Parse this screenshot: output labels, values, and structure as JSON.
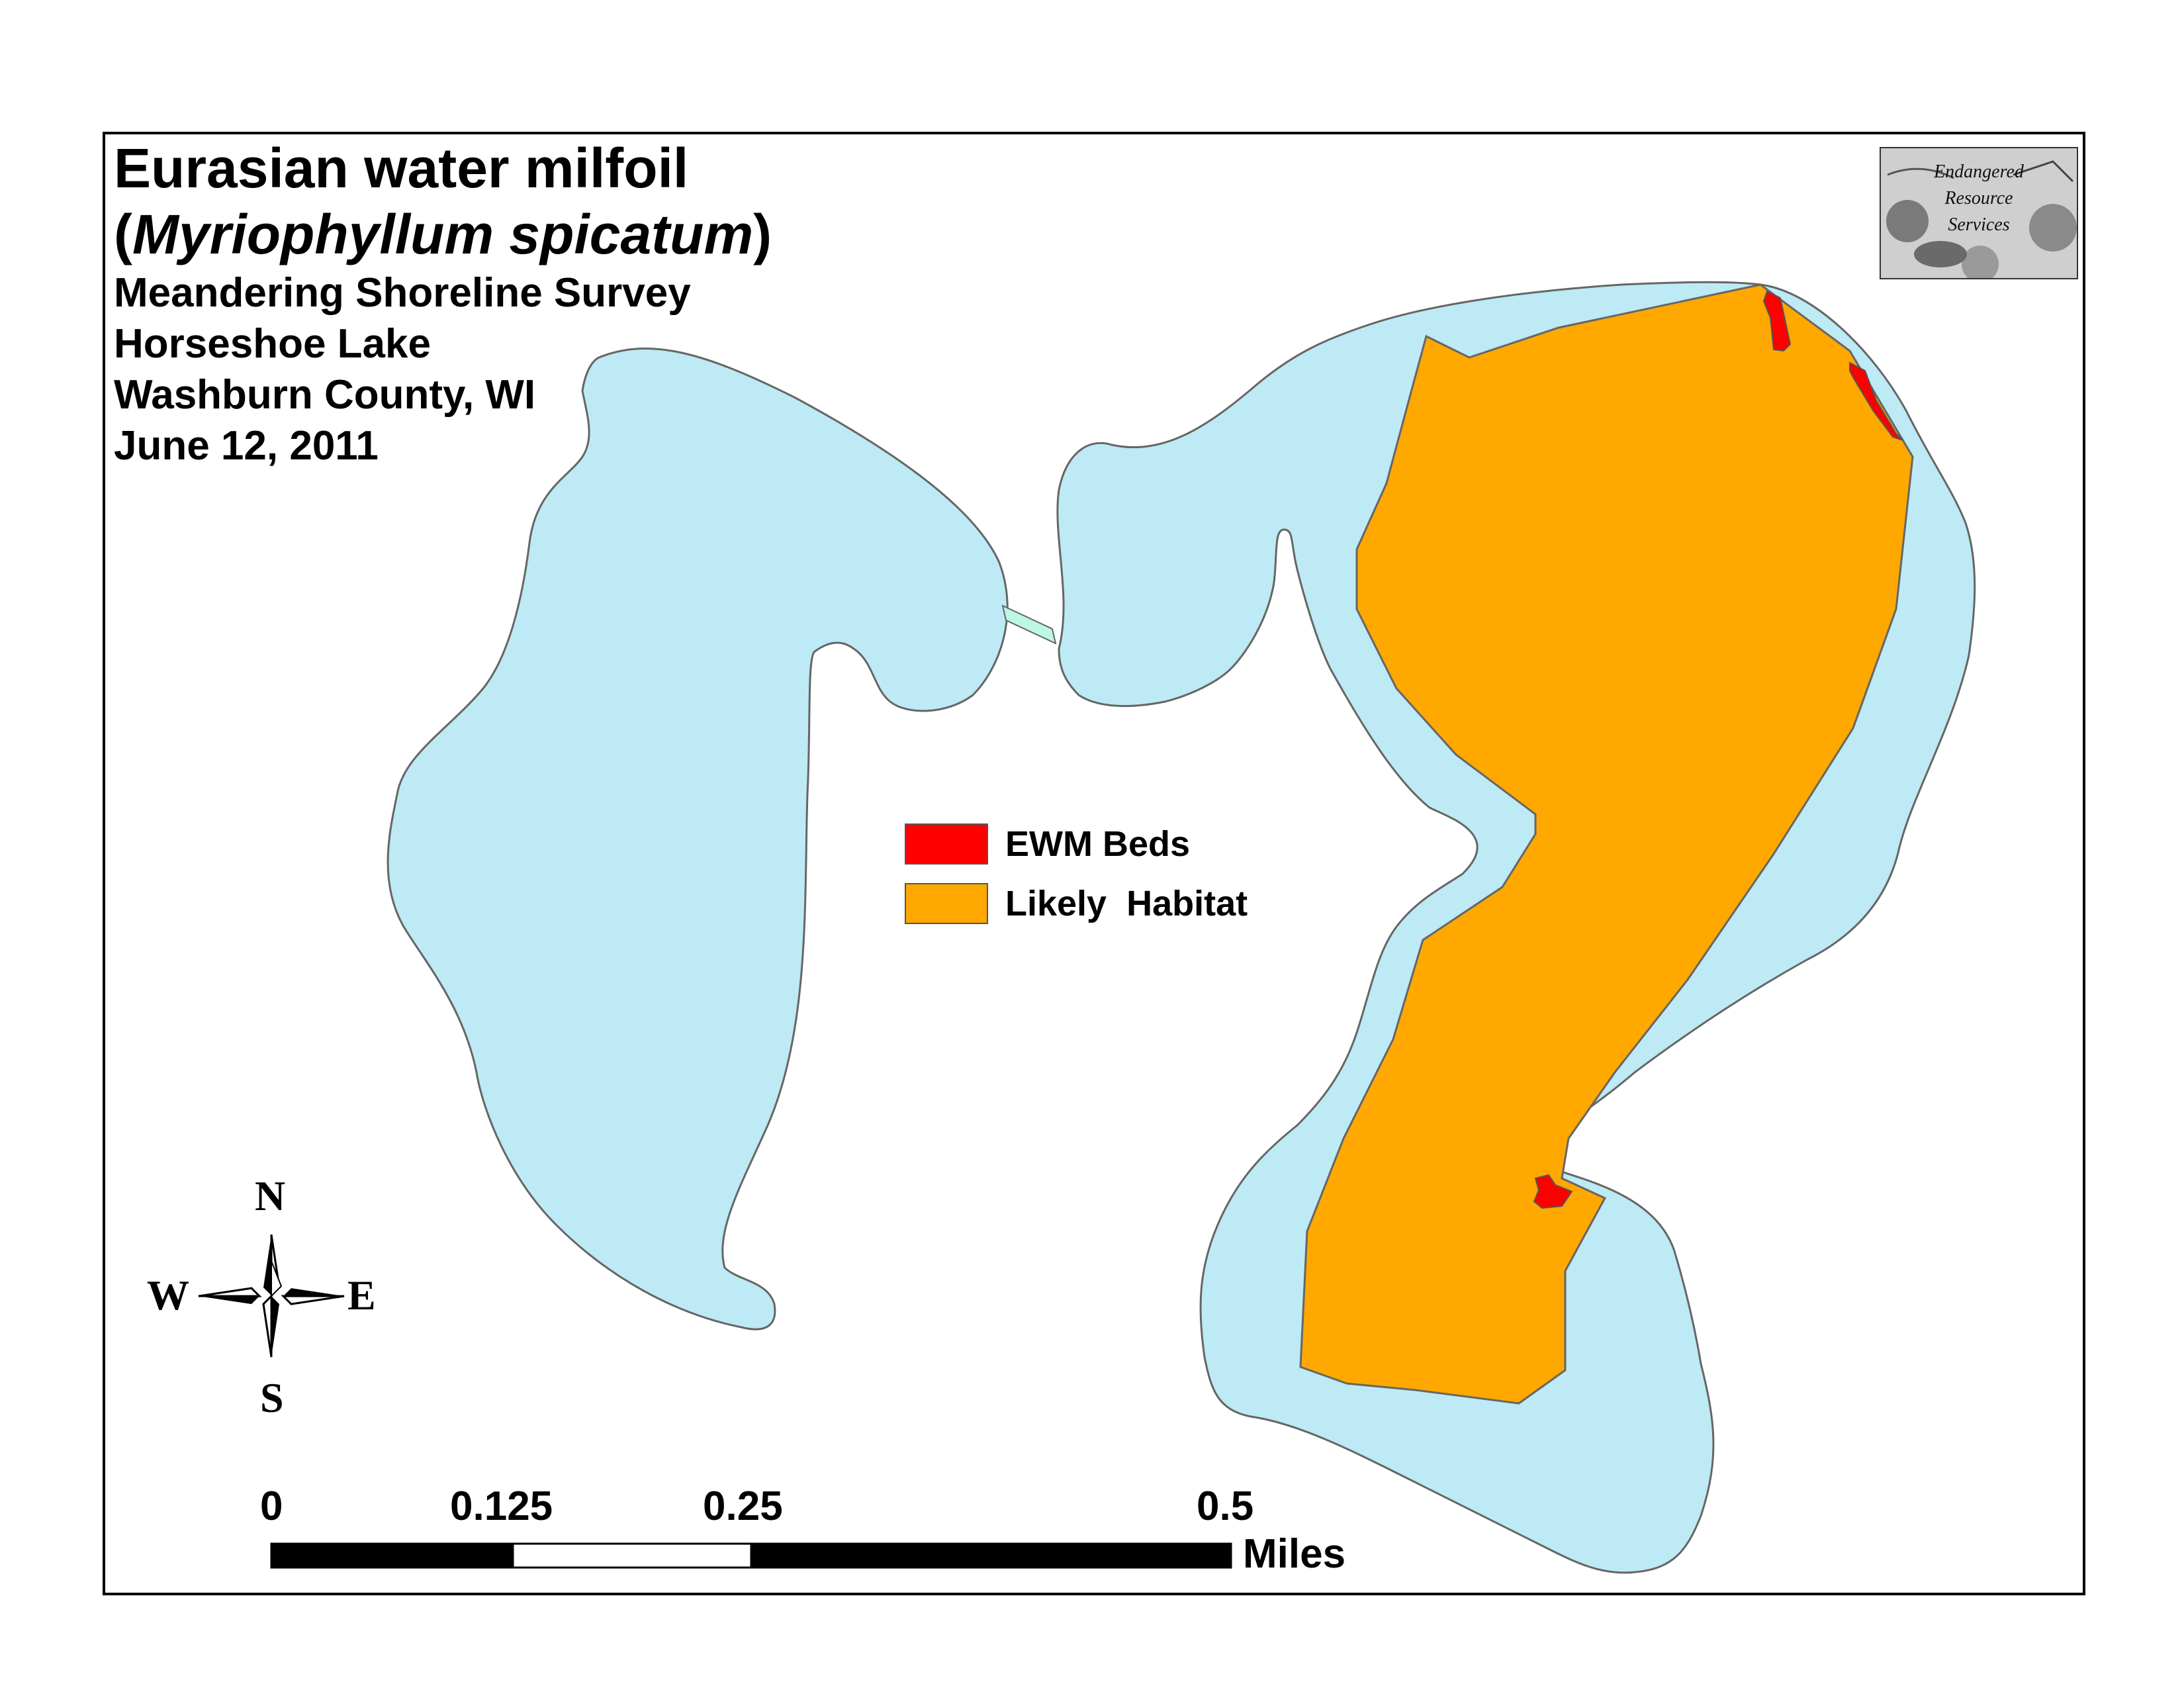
{
  "title": {
    "line1": "Eurasian water milfoil",
    "line2_open": "(",
    "line2_species": "Myriophyllum spicatum",
    "line2_close": ")",
    "survey": "Meandering Shoreline Survey",
    "lake": "Horseshoe Lake",
    "county": "Washburn County, WI",
    "date": "June 12, 2011"
  },
  "legend": {
    "items": [
      {
        "label": "EWM Beds",
        "color": "#ff0000"
      },
      {
        "label": "Likely  Habitat",
        "color": "#ffa800"
      }
    ]
  },
  "logo": {
    "line1": "Endangered",
    "line2": "Resource",
    "line3": "Services"
  },
  "compass": {
    "n": "N",
    "s": "S",
    "e": "E",
    "w": "W"
  },
  "scale": {
    "ticks": [
      "0",
      "0.125",
      "0.25",
      "0.5"
    ],
    "unit": "Miles"
  },
  "colors": {
    "water": "#bdeaf4",
    "habitat": "#ffa800",
    "ewm": "#ff0000",
    "channel": "#bdf7e6",
    "outline": "#666666"
  }
}
